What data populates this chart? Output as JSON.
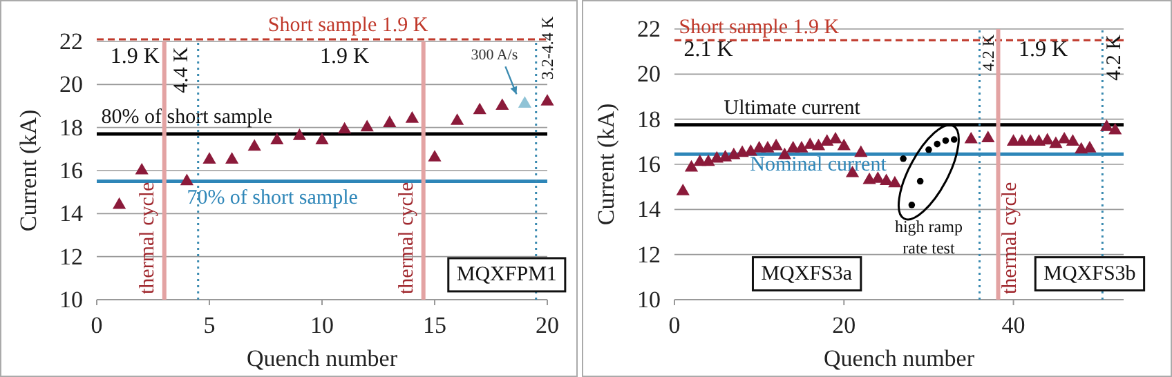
{
  "chart_data": [
    {
      "type": "scatter",
      "xlabel": "Quench number",
      "ylabel": "Current (kA)",
      "xlim": [
        0,
        20
      ],
      "xticks": [
        0,
        5,
        10,
        15,
        20
      ],
      "ylim": [
        10,
        22
      ],
      "yticks": [
        10,
        12,
        14,
        16,
        18,
        20,
        22
      ],
      "grid": "y",
      "marker": "triangle",
      "series": [
        {
          "color": "#8b1a3a",
          "x": [
            1,
            2,
            4,
            5,
            6,
            7,
            8,
            9,
            10,
            11,
            12,
            13,
            14,
            15,
            16,
            17,
            18,
            20
          ],
          "values": [
            14.4,
            16.0,
            15.5,
            16.5,
            16.5,
            17.1,
            17.4,
            17.6,
            17.4,
            17.9,
            18.0,
            18.2,
            18.4,
            16.6,
            18.3,
            18.8,
            19.0,
            19.2
          ]
        },
        {
          "color": "#8fc3d6",
          "x": [
            19
          ],
          "values": [
            19.1
          ]
        }
      ],
      "ref_lines": [
        {
          "axis": "y",
          "value": 22.1,
          "label": "Short sample 1.9 K",
          "color": "#c0392b",
          "line_style": "dashed"
        },
        {
          "axis": "y",
          "value": 17.7,
          "label": "80% of short sample",
          "color": "#000000",
          "line_style": "solid"
        },
        {
          "axis": "y",
          "value": 15.5,
          "label": "70% of short sample",
          "color": "#2e86b8",
          "line_style": "solid"
        },
        {
          "axis": "x",
          "value": 3,
          "label": "thermal cycle",
          "color": "#e3a3a3",
          "line_style": "solid"
        },
        {
          "axis": "x",
          "value": 14.5,
          "label": "thermal cycle",
          "color": "#e3a3a3",
          "line_style": "solid"
        },
        {
          "axis": "x",
          "value": 4.5,
          "label": "4.4 K",
          "color": "#3a8ab0",
          "line_style": "dotted"
        },
        {
          "axis": "x",
          "value": 19.5,
          "label": "3.2-4.4 K",
          "color": "#3a8ab0",
          "line_style": "dotted"
        }
      ],
      "annotations": [
        "1.9 K",
        "1.9 K",
        {
          "text": "300 A/s",
          "x": 19,
          "y": 19.1
        },
        "MQXFPM1"
      ]
    },
    {
      "type": "scatter",
      "xlabel": "Quench number",
      "ylabel": "Current (kA)",
      "xlim": [
        0,
        53
      ],
      "xticks": [
        0,
        20,
        40
      ],
      "ylim": [
        10,
        22
      ],
      "yticks": [
        10,
        12,
        14,
        16,
        18,
        20,
        22
      ],
      "grid": "y",
      "series": [
        {
          "color": "#8b1a3a",
          "marker": "triangle",
          "x": [
            1,
            2,
            3,
            4,
            5,
            6,
            7,
            8,
            9,
            10,
            11,
            12,
            13,
            14,
            15,
            16,
            17,
            18,
            19,
            20,
            21,
            22,
            23,
            24,
            25,
            26,
            35,
            37,
            40,
            41,
            42,
            43,
            44,
            45,
            46,
            47,
            48,
            49,
            51,
            52
          ],
          "values": [
            14.8,
            15.85,
            16.1,
            16.1,
            16.25,
            16.3,
            16.4,
            16.5,
            16.55,
            16.7,
            16.7,
            16.8,
            16.4,
            16.7,
            16.7,
            16.85,
            16.8,
            17.0,
            17.1,
            16.8,
            15.6,
            16.5,
            15.3,
            15.35,
            15.25,
            15.15,
            17.1,
            17.15,
            17.0,
            17.0,
            17.0,
            17.0,
            17.05,
            16.9,
            17.1,
            17.0,
            16.65,
            16.7,
            17.65,
            17.5
          ]
        },
        {
          "color": "#000000",
          "marker": "circle",
          "x": [
            27,
            28,
            29,
            30,
            31,
            32,
            33
          ],
          "values": [
            16.25,
            14.2,
            15.25,
            16.65,
            16.9,
            17.05,
            17.1
          ]
        }
      ],
      "ref_lines": [
        {
          "axis": "y",
          "value": 21.5,
          "label": "Short sample 1.9 K",
          "color": "#c0392b",
          "line_style": "dashed"
        },
        {
          "axis": "y",
          "value": 17.75,
          "label": "Ultimate current",
          "color": "#000000",
          "line_style": "solid"
        },
        {
          "axis": "y",
          "value": 16.45,
          "label": "Nominal current",
          "color": "#2e86b8",
          "line_style": "solid"
        },
        {
          "axis": "x",
          "value": 36,
          "label": "4.2 K",
          "color": "#3a8ab0",
          "line_style": "dotted"
        },
        {
          "axis": "x",
          "value": 38.2,
          "label": "thermal cycle",
          "color": "#e3a3a3",
          "line_style": "solid"
        },
        {
          "axis": "x",
          "value": 50.5,
          "label": "4.2 K",
          "color": "#3a8ab0",
          "line_style": "dotted"
        }
      ],
      "annotations": [
        "2.1 K",
        "1.9 K",
        "high ramp rate test",
        "MQXFS3a",
        "MQXFS3b"
      ]
    }
  ]
}
